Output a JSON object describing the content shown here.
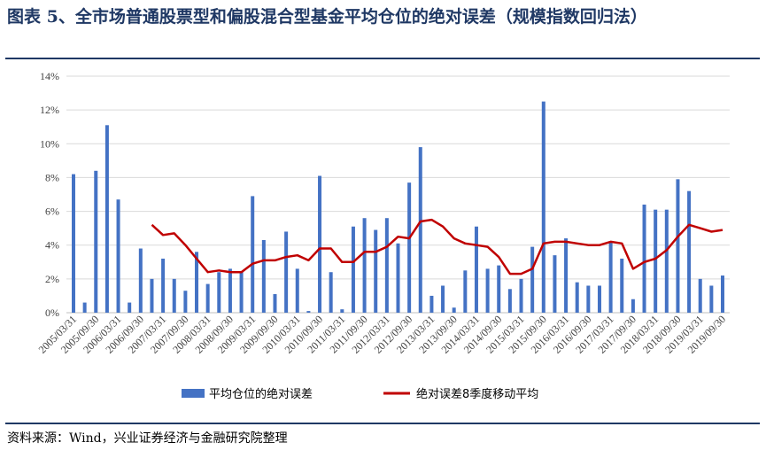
{
  "title": "图表 5、全市场普通股票型和偏股混合型基金平均仓位的绝对误差（规模指数回归法）",
  "source": "资料来源：Wind，兴业证券经济与金融研究院整理",
  "colors": {
    "bar": "#4472c4",
    "line": "#c00000",
    "grid": "#d9d9d9",
    "title": "#1f3864"
  },
  "chart_data": {
    "type": "bar",
    "title": "",
    "xlabel": "",
    "ylabel": "",
    "ylim": [
      0,
      14
    ],
    "yticks": [
      "0%",
      "2%",
      "4%",
      "6%",
      "8%",
      "10%",
      "12%",
      "14%"
    ],
    "grid": true,
    "legend_position": "bottom",
    "categories": [
      "2005/03/31",
      "2005/06/30",
      "2005/09/30",
      "2005/12/31",
      "2006/03/31",
      "2006/06/30",
      "2006/09/30",
      "2006/12/31",
      "2007/03/31",
      "2007/06/30",
      "2007/09/30",
      "2007/12/31",
      "2008/03/31",
      "2008/06/30",
      "2008/09/30",
      "2008/12/31",
      "2009/03/31",
      "2009/06/30",
      "2009/09/30",
      "2009/12/31",
      "2010/03/31",
      "2010/06/30",
      "2010/09/30",
      "2010/12/31",
      "2011/03/31",
      "2011/06/30",
      "2011/09/30",
      "2011/12/31",
      "2012/03/31",
      "2012/06/30",
      "2012/09/30",
      "2012/12/31",
      "2013/03/31",
      "2013/06/30",
      "2013/09/30",
      "2013/12/31",
      "2014/03/31",
      "2014/06/30",
      "2014/09/30",
      "2014/12/31",
      "2015/03/31",
      "2015/06/30",
      "2015/09/30",
      "2015/12/31",
      "2016/03/31",
      "2016/06/30",
      "2016/09/30",
      "2016/12/31",
      "2017/03/31",
      "2017/06/30",
      "2017/09/30",
      "2017/12/31",
      "2018/03/31",
      "2018/06/30",
      "2018/09/30",
      "2018/12/31",
      "2019/03/31",
      "2019/06/30",
      "2019/09/30"
    ],
    "shown_tick_labels": [
      "2005/03/31",
      "2005/09/30",
      "2006/03/31",
      "2006/09/30",
      "2007/03/31",
      "2007/09/30",
      "2008/03/31",
      "2008/09/30",
      "2009/03/31",
      "2009/09/30",
      "2010/03/31",
      "2010/09/30",
      "2011/03/31",
      "2011/09/30",
      "2012/03/31",
      "2012/09/30",
      "2013/03/31",
      "2013/09/30",
      "2014/03/31",
      "2014/09/30",
      "2015/03/31",
      "2015/09/30",
      "2016/03/31",
      "2016/09/30",
      "2017/03/31",
      "2017/09/30",
      "2018/03/31",
      "2018/09/30",
      "2019/03/31",
      "2019/09/30"
    ],
    "series": [
      {
        "name": "平均仓位的绝对误差",
        "kind": "bar",
        "values": [
          8.2,
          0.6,
          8.4,
          11.1,
          6.7,
          0.6,
          3.8,
          2.0,
          3.2,
          2.0,
          1.3,
          3.6,
          1.7,
          2.4,
          2.6,
          2.4,
          6.9,
          4.3,
          1.1,
          4.8,
          2.6,
          0.1,
          8.1,
          2.4,
          0.2,
          5.1,
          5.6,
          4.9,
          5.6,
          4.1,
          7.7,
          9.8,
          1.0,
          1.6,
          0.3,
          2.5,
          5.1,
          2.6,
          2.8,
          1.4,
          2.0,
          3.9,
          12.5,
          3.4,
          4.4,
          1.8,
          1.6,
          1.6,
          4.2,
          3.2,
          0.8,
          6.4,
          6.1,
          6.1,
          7.9,
          7.2,
          2.0,
          1.6,
          2.2
        ]
      },
      {
        "name": "绝对误差8季度移动平均",
        "kind": "line",
        "values": [
          null,
          null,
          null,
          null,
          null,
          null,
          null,
          5.2,
          4.6,
          4.7,
          4.0,
          3.2,
          2.4,
          2.5,
          2.4,
          2.4,
          2.9,
          3.1,
          3.1,
          3.3,
          3.4,
          3.1,
          3.8,
          3.8,
          3.0,
          3.0,
          3.6,
          3.6,
          3.9,
          4.5,
          4.4,
          5.4,
          5.5,
          5.1,
          4.4,
          4.1,
          4.0,
          3.9,
          3.3,
          2.3,
          2.3,
          2.6,
          4.1,
          4.2,
          4.2,
          4.1,
          4.0,
          4.0,
          4.2,
          4.1,
          2.6,
          3.0,
          3.2,
          3.7,
          4.5,
          5.2,
          5.0,
          4.8,
          4.9
        ]
      }
    ]
  }
}
